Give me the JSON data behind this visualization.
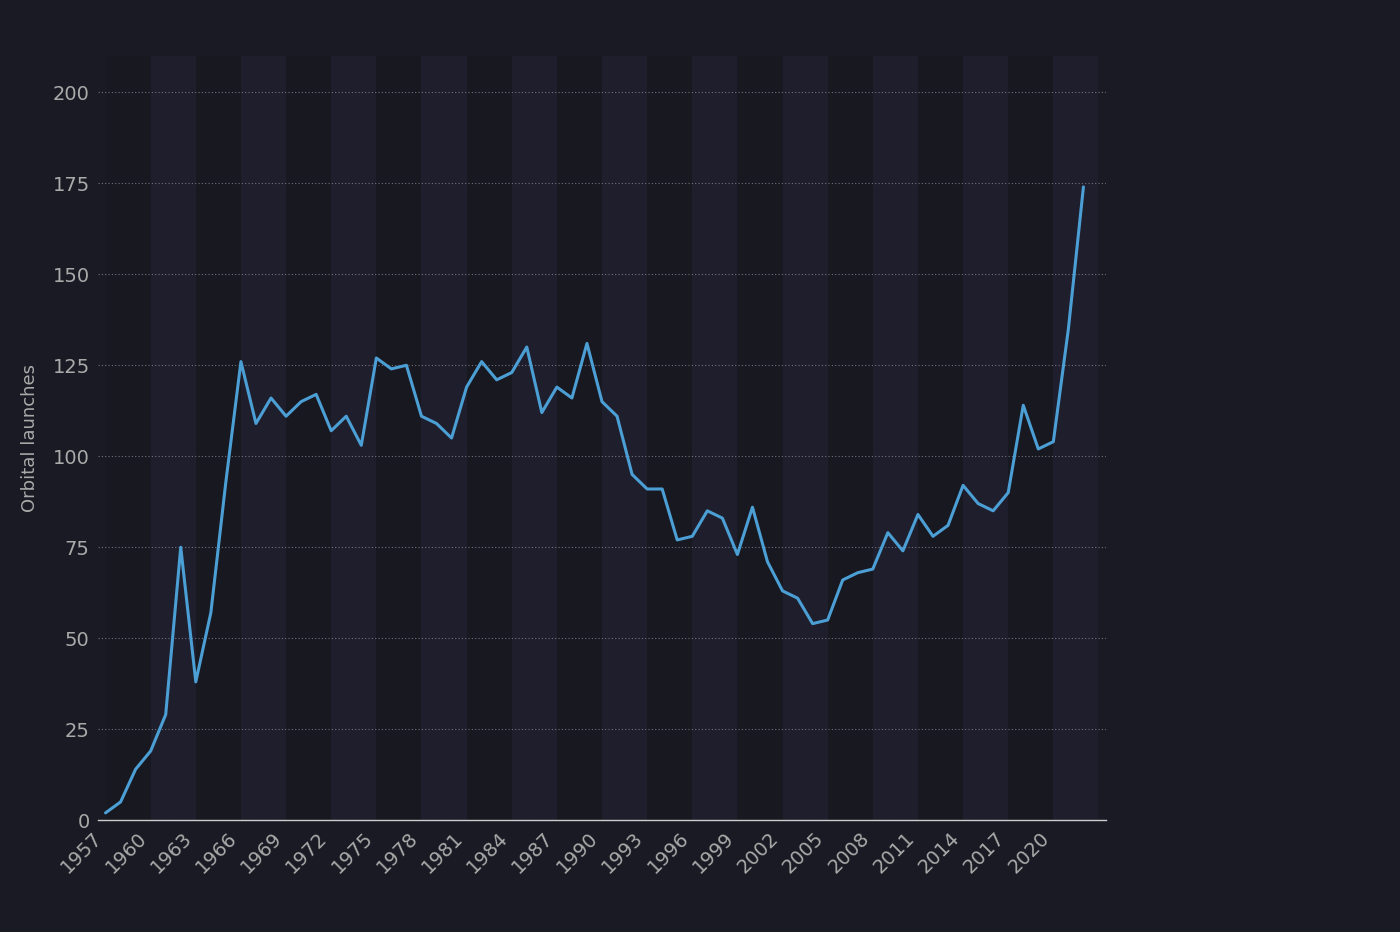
{
  "years": [
    1957,
    1958,
    1959,
    1960,
    1961,
    1962,
    1963,
    1964,
    1965,
    1966,
    1967,
    1968,
    1969,
    1970,
    1971,
    1972,
    1973,
    1974,
    1975,
    1976,
    1977,
    1978,
    1979,
    1980,
    1981,
    1982,
    1983,
    1984,
    1985,
    1986,
    1987,
    1988,
    1989,
    1990,
    1991,
    1992,
    1993,
    1994,
    1995,
    1996,
    1997,
    1998,
    1999,
    2000,
    2001,
    2002,
    2003,
    2004,
    2005,
    2006,
    2007,
    2008,
    2009,
    2010,
    2011,
    2012,
    2013,
    2014,
    2015,
    2016,
    2017,
    2018,
    2019,
    2020,
    2021,
    2022
  ],
  "launches": [
    2,
    5,
    14,
    19,
    29,
    75,
    38,
    57,
    93,
    126,
    109,
    116,
    111,
    115,
    117,
    107,
    111,
    103,
    127,
    124,
    125,
    111,
    109,
    105,
    119,
    126,
    121,
    123,
    130,
    112,
    119,
    116,
    131,
    115,
    111,
    95,
    91,
    91,
    77,
    78,
    85,
    83,
    73,
    86,
    71,
    63,
    61,
    54,
    55,
    66,
    68,
    69,
    79,
    74,
    84,
    78,
    81,
    92,
    87,
    85,
    90,
    114,
    102,
    104,
    135,
    174
  ],
  "line_color": "#4b9fd5",
  "line_width": 2.2,
  "fig_bg": "#1a1a24",
  "plot_bg": "#1a1a24",
  "axis_color": "#aaaaaa",
  "grid_color": "#444455",
  "ylabel": "Orbital launches",
  "ylim": [
    0,
    210
  ],
  "yticks": [
    0,
    25,
    50,
    75,
    100,
    125,
    150,
    175,
    200
  ],
  "tick_fontsize": 14,
  "label_fontsize": 13,
  "band_color_dark": "#181820",
  "band_color_light": "#1e1e2c"
}
